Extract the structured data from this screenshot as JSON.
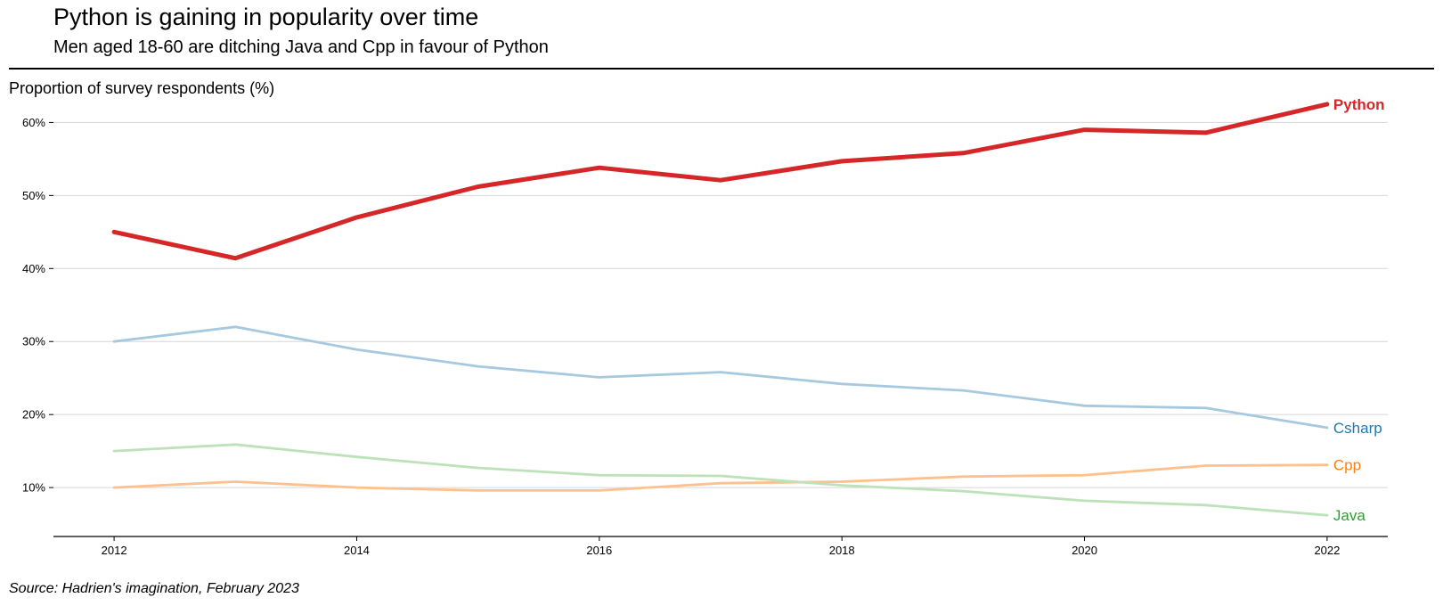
{
  "chart_data": {
    "type": "line",
    "title": "Python is gaining in popularity over time",
    "subtitle": "Men aged 18-60 are ditching Java and Cpp in favour of Python",
    "ylabel": "Proportion of survey respondents (%)",
    "source": "Source: Hadrien's imagination, February 2023",
    "x": [
      2012,
      2013,
      2014,
      2015,
      2016,
      2017,
      2018,
      2019,
      2020,
      2021,
      2022
    ],
    "xticks": [
      2012,
      2014,
      2016,
      2018,
      2020,
      2022
    ],
    "xtick_labels": [
      "2012",
      "2014",
      "2016",
      "2018",
      "2020",
      "2022"
    ],
    "yticks": [
      10,
      20,
      30,
      40,
      50,
      60
    ],
    "ytick_labels": [
      "10%",
      "20%",
      "30%",
      "40%",
      "50%",
      "60%"
    ],
    "xlim": [
      2011.5,
      2022.5
    ],
    "ylim": [
      3.3,
      65.3
    ],
    "grid": "horizontal",
    "series": [
      {
        "name": "Python",
        "color": "#d62728",
        "emphasis": true,
        "values": [
          45.0,
          41.4,
          47.0,
          51.2,
          53.8,
          52.1,
          54.7,
          55.8,
          59.0,
          58.6,
          62.5
        ]
      },
      {
        "name": "Csharp",
        "color": "#1f77b4",
        "line_color": "#a6c9e0",
        "emphasis": false,
        "values": [
          30.0,
          32.0,
          28.9,
          26.6,
          25.1,
          25.8,
          24.2,
          23.3,
          21.2,
          20.9,
          18.2
        ]
      },
      {
        "name": "Cpp",
        "color": "#ff7f0e",
        "line_color": "#fec18d",
        "emphasis": false,
        "values": [
          10.0,
          10.8,
          10.0,
          9.6,
          9.6,
          10.6,
          10.8,
          11.5,
          11.7,
          13.0,
          13.1
        ]
      },
      {
        "name": "Java",
        "color": "#2ca02c",
        "line_color": "#bde2b9",
        "emphasis": false,
        "values": [
          15.0,
          15.9,
          14.2,
          12.7,
          11.7,
          11.6,
          10.3,
          9.5,
          8.2,
          7.6,
          6.2
        ]
      }
    ]
  }
}
